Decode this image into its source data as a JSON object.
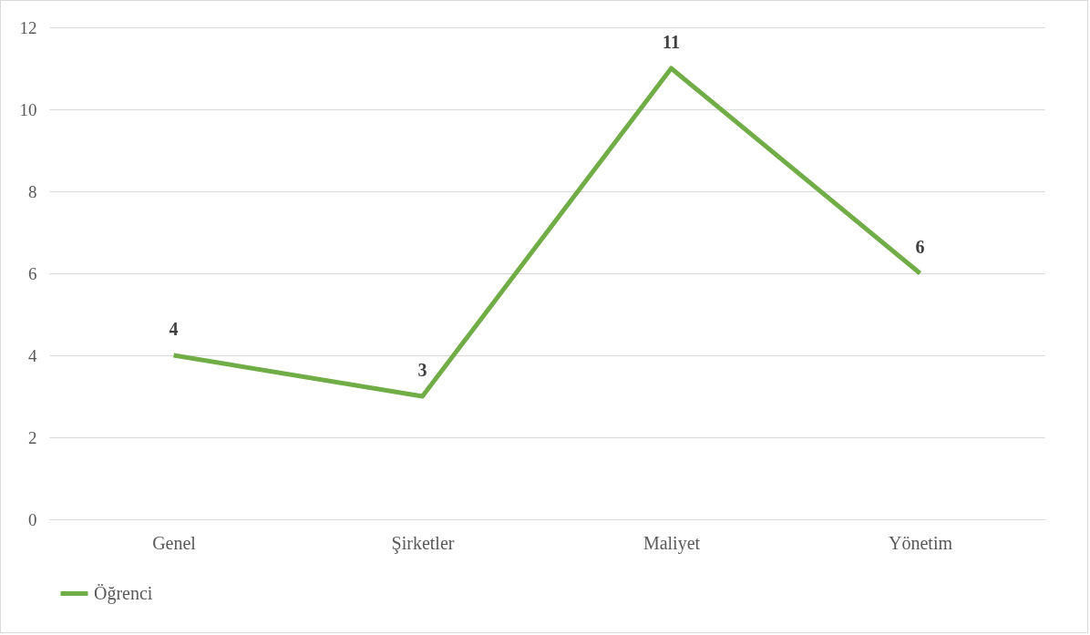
{
  "chart_data": {
    "type": "line",
    "categories": [
      "Genel",
      "Şirketler",
      "Maliyet",
      "Yönetim"
    ],
    "series": [
      {
        "name": "Öğrenci",
        "color": "#70ad47",
        "values": [
          4,
          3,
          11,
          6
        ]
      }
    ],
    "ylim": [
      0,
      12
    ],
    "yticks": [
      0,
      2,
      4,
      6,
      8,
      10,
      12
    ],
    "grid": "y",
    "legend": "bottom",
    "data_labels": true
  }
}
